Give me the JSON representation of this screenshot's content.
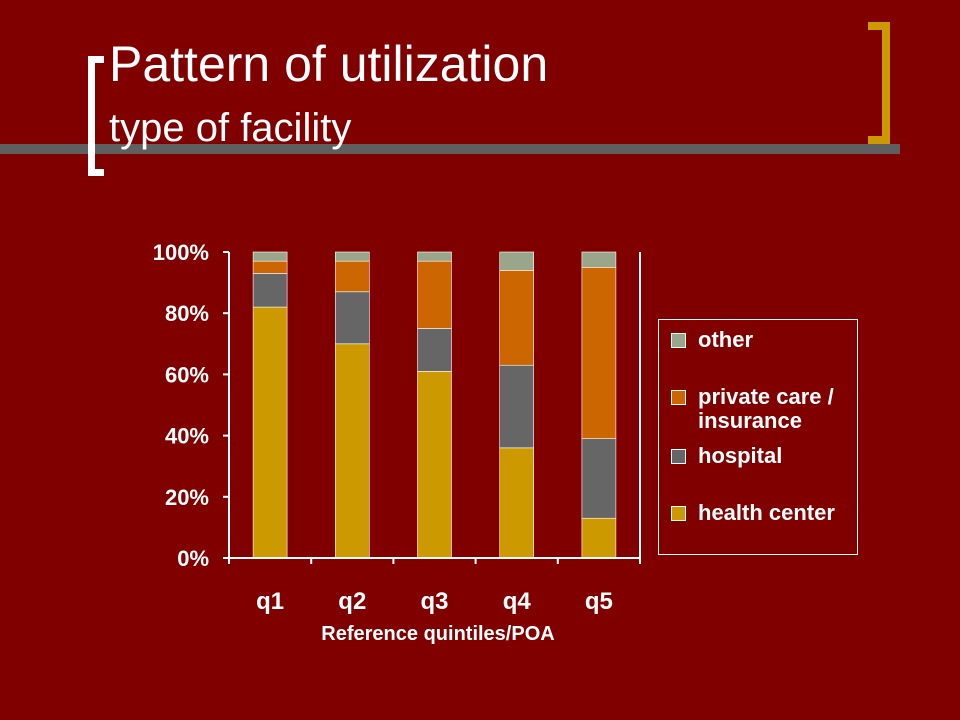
{
  "slide": {
    "title": "Pattern of utilization",
    "subtitle": "type of facility",
    "accent_color": "#cc9900",
    "background_color": "#800000"
  },
  "chart_data": {
    "type": "bar",
    "stacked": true,
    "percent": true,
    "categories": [
      "q1",
      "q2",
      "q3",
      "q4",
      "q5"
    ],
    "series": [
      {
        "name": "health center",
        "color": "#cc9900",
        "values": [
          82,
          70,
          61,
          36,
          13
        ]
      },
      {
        "name": "hospital",
        "color": "#666666",
        "values": [
          11,
          17,
          14,
          27,
          26
        ]
      },
      {
        "name": "private care / insurance",
        "color": "#cc6600",
        "values": [
          4,
          10,
          22,
          31,
          56
        ]
      },
      {
        "name": "other",
        "color": "#99a68c",
        "values": [
          3,
          3,
          3,
          6,
          5
        ]
      }
    ],
    "yticks": [
      "0%",
      "20%",
      "40%",
      "60%",
      "80%",
      "100%"
    ],
    "ylim": [
      0,
      100
    ],
    "xlabel": "Reference quintiles/POA",
    "ylabel": "",
    "legend": {
      "position": "right",
      "order": [
        "other",
        "private care / insurance",
        "hospital",
        "health center"
      ]
    },
    "grid": false
  }
}
